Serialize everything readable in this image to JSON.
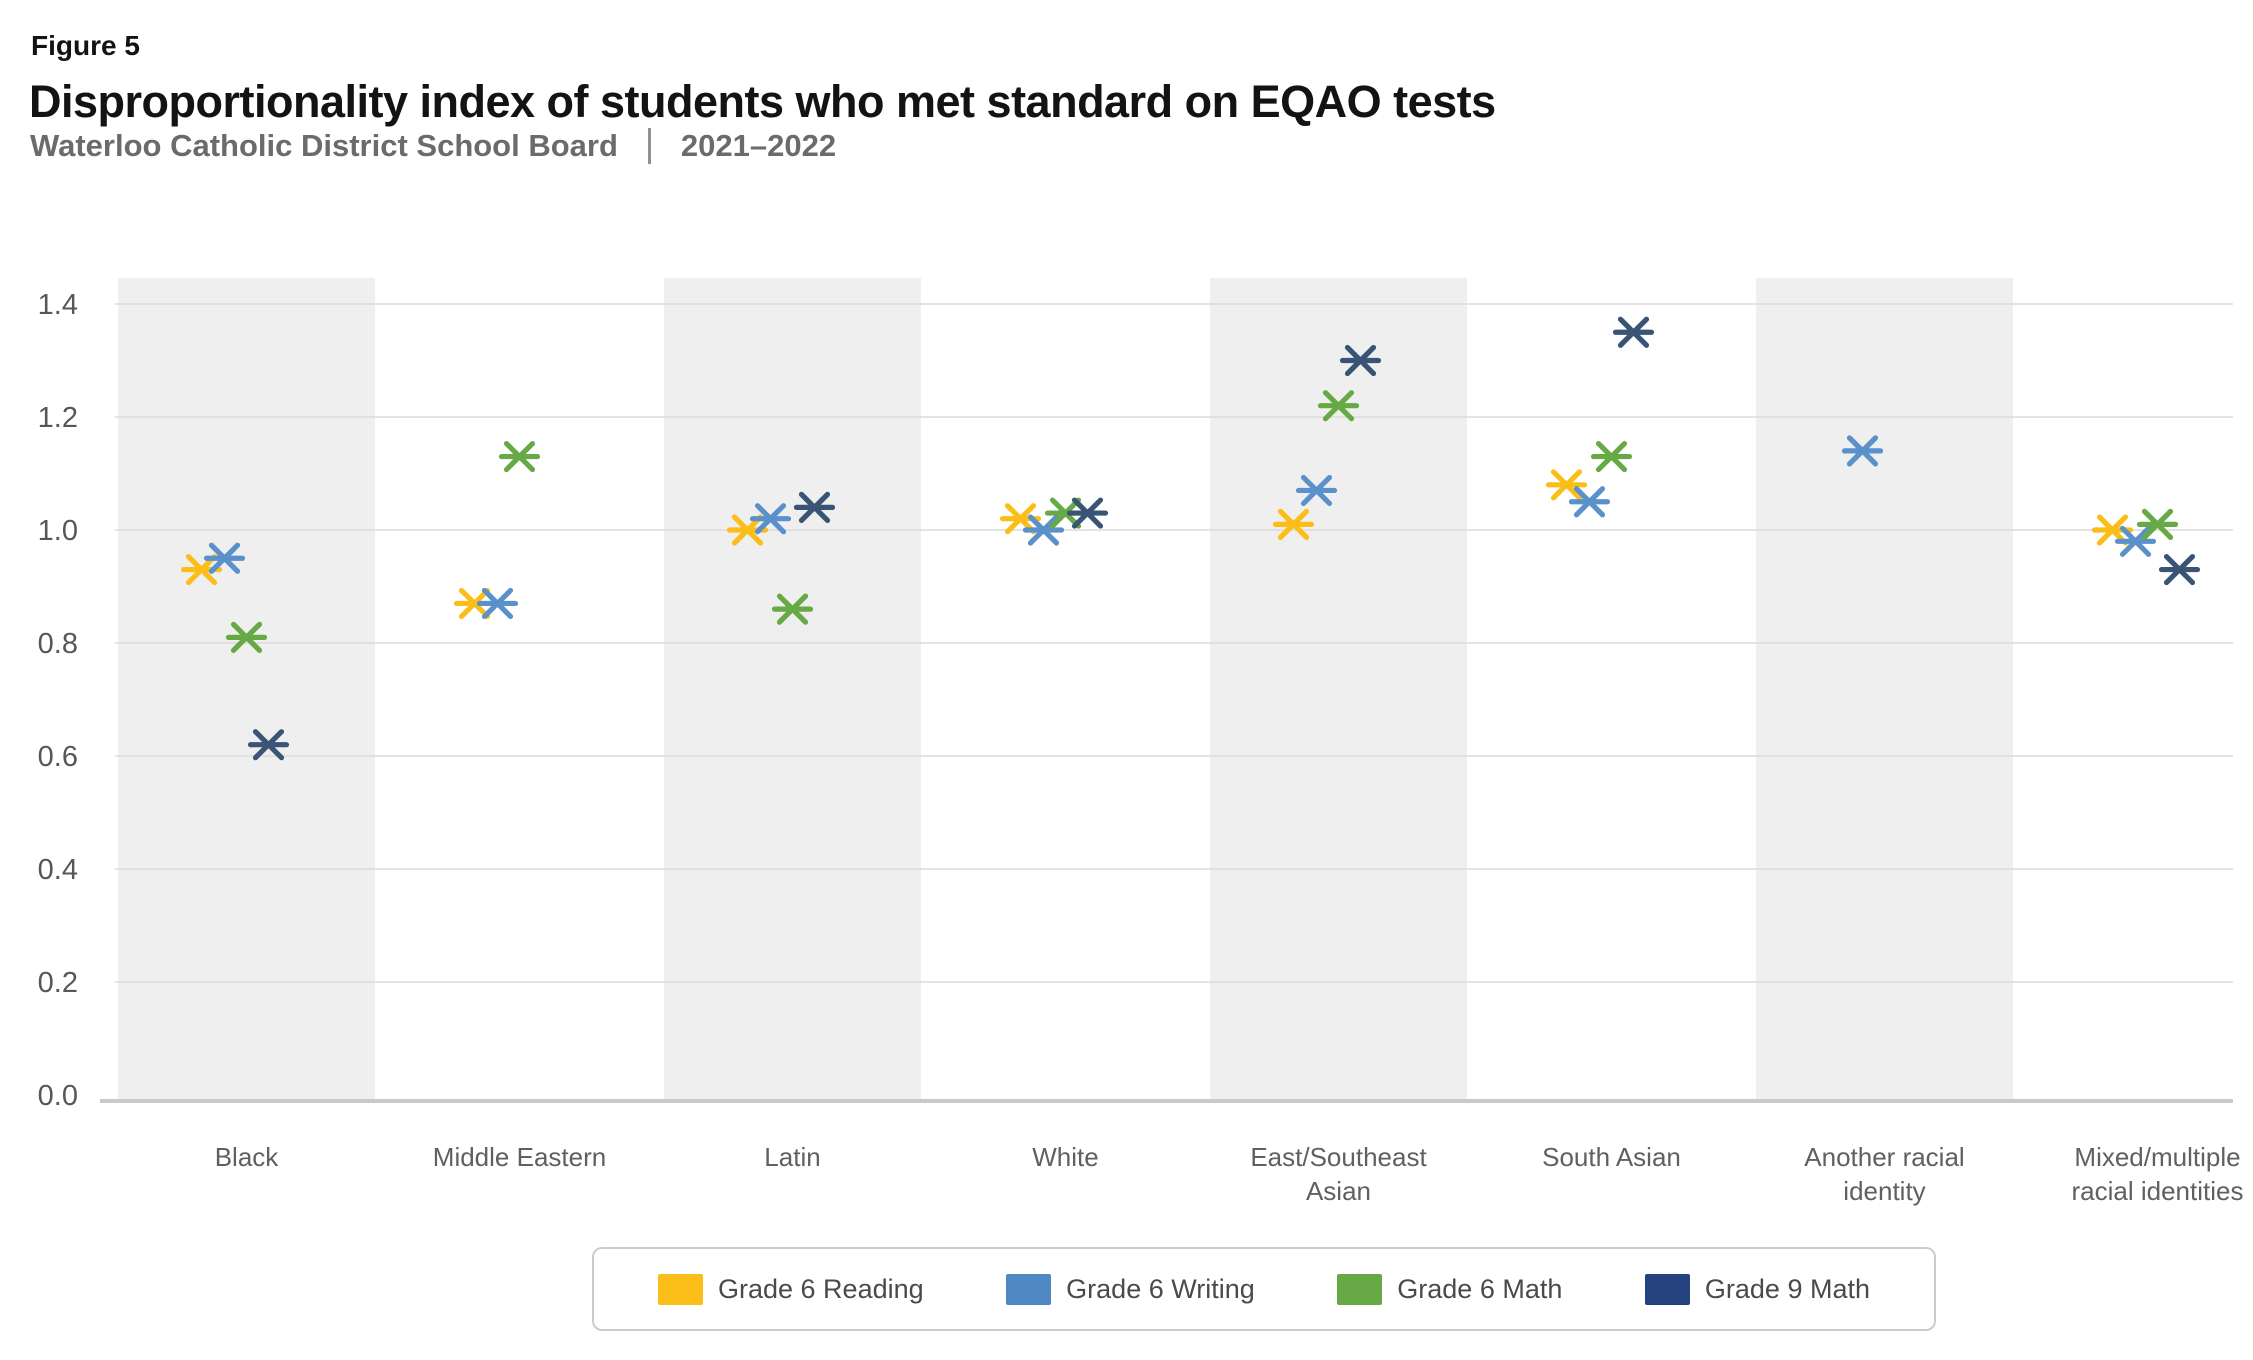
{
  "figure_label": "Figure 5",
  "title": "Disproportionality index of students who met standard on EQAO tests",
  "subtitle_left": "Waterloo Catholic District School Board",
  "subtitle_right": "2021–2022",
  "chart_data": {
    "type": "scatter",
    "marker_shape": "6-point-asterisk",
    "title": "Disproportionality index of students who met standard on EQAO tests",
    "xlabel": "",
    "ylabel": "",
    "ylim": [
      0,
      1.45
    ],
    "ytick_labels": [
      "0.0",
      "0.2",
      "0.4",
      "0.6",
      "0.8",
      "1.0",
      "1.2",
      "1.4"
    ],
    "grid": true,
    "band_color": "#EFEFEF",
    "banded_group_indexes": [
      0,
      2,
      4,
      6
    ],
    "legend_position": "bottom",
    "categories": [
      "Black",
      "Middle Eastern",
      "Latin",
      "White",
      "East/Southeast\nAsian",
      "South Asian",
      "Another racial\nidentity",
      "Mixed/multiple\nracial identities"
    ],
    "series": [
      {
        "name": "Grade 6 Reading",
        "color": "#FBBE18",
        "legend_color": "#FBBE18",
        "values": [
          0.93,
          0.87,
          1.0,
          1.02,
          1.01,
          1.08,
          null,
          1.0
        ]
      },
      {
        "name": "Grade 6 Writing",
        "color": "#5A91CB",
        "legend_color": "#4E89C4",
        "values": [
          0.95,
          0.87,
          1.02,
          1.0,
          1.07,
          1.05,
          1.14,
          0.98
        ]
      },
      {
        "name": "Grade 6 Math",
        "color": "#67A944",
        "legend_color": "#67A944",
        "values": [
          0.81,
          1.13,
          0.86,
          1.03,
          1.22,
          1.13,
          null,
          1.01
        ]
      },
      {
        "name": "Grade 9 Math",
        "color": "#3A5475",
        "legend_color": "#24427E",
        "values": [
          0.62,
          null,
          1.04,
          1.03,
          1.3,
          1.35,
          null,
          0.93
        ]
      }
    ]
  }
}
